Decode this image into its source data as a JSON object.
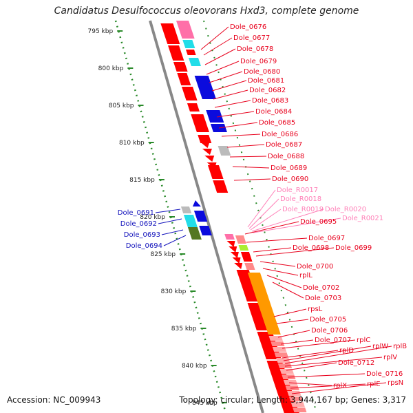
{
  "title": "Candidatus Desulfococcus oleovorans Hxd3, complete genome",
  "footer": {
    "accession": "Accession: NC_009943",
    "topology": "Topology: circular; Length: 3,944,167 bp; Genes: 3,317"
  },
  "scale": {
    "ticks": [
      "795 kbp",
      "800 kbp",
      "805 kbp",
      "810 kbp",
      "815 kbp",
      "820 kbp",
      "825 kbp",
      "830 kbp",
      "835 kbp",
      "840 kbp",
      "845 kbp"
    ]
  },
  "colors": {
    "cds": "#ff0000",
    "cds_light": "#ff8a8a",
    "rrna": "#ff6fa8",
    "hypo_cyan": "#22dde8",
    "hypo_blue": "#0b0bdd",
    "olive": "#557722",
    "orange": "#ff9900",
    "grey": "#bbbbbb",
    "backbone": "#888888",
    "scale_green": "#2a8a2a",
    "label_red": "#e8001c",
    "label_pink": "#ff80b8",
    "label_blue": "#1010bb"
  },
  "labels_right": [
    {
      "text": "Dole_0676",
      "tone": "red"
    },
    {
      "text": "Dole_0677",
      "tone": "red"
    },
    {
      "text": "Dole_0678",
      "tone": "red"
    },
    {
      "text": "Dole_0679",
      "tone": "red"
    },
    {
      "text": "Dole_0680",
      "tone": "red"
    },
    {
      "text": "Dole_0681",
      "tone": "red"
    },
    {
      "text": "Dole_0682",
      "tone": "red"
    },
    {
      "text": "Dole_0683",
      "tone": "red"
    },
    {
      "text": "Dole_0684",
      "tone": "red"
    },
    {
      "text": "Dole_0685",
      "tone": "red"
    },
    {
      "text": "Dole_0686",
      "tone": "red"
    },
    {
      "text": "Dole_0687",
      "tone": "red"
    },
    {
      "text": "Dole_0688",
      "tone": "red"
    },
    {
      "text": "Dole_0689",
      "tone": "red"
    },
    {
      "text": "Dole_0690",
      "tone": "red"
    },
    {
      "text": "Dole_R0017",
      "tone": "pink"
    },
    {
      "text": "Dole_R0018",
      "tone": "pink"
    },
    {
      "text": "Dole_R0019",
      "tone": "pink"
    },
    {
      "text": "Dole_R0020",
      "tone": "pink"
    },
    {
      "text": "Dole_R0021",
      "tone": "pink"
    },
    {
      "text": "Dole_0695",
      "tone": "red"
    },
    {
      "text": "Dole_0697",
      "tone": "red"
    },
    {
      "text": "Dole_0698",
      "tone": "red"
    },
    {
      "text": "Dole_0699",
      "tone": "red"
    },
    {
      "text": "Dole_0700",
      "tone": "red"
    },
    {
      "text": "rplL",
      "tone": "red"
    },
    {
      "text": "Dole_0702",
      "tone": "red"
    },
    {
      "text": "Dole_0703",
      "tone": "red"
    },
    {
      "text": "rpsL",
      "tone": "red"
    },
    {
      "text": "Dole_0705",
      "tone": "red"
    },
    {
      "text": "Dole_0706",
      "tone": "red"
    },
    {
      "text": "Dole_0707",
      "tone": "red"
    },
    {
      "text": "rplC",
      "tone": "red"
    },
    {
      "text": "rplD",
      "tone": "red"
    },
    {
      "text": "rplW",
      "tone": "red"
    },
    {
      "text": "rplB",
      "tone": "red"
    },
    {
      "text": "rplV",
      "tone": "red"
    },
    {
      "text": "Dole_0712",
      "tone": "red"
    },
    {
      "text": "Dole_0716",
      "tone": "red"
    },
    {
      "text": "rplX",
      "tone": "red"
    },
    {
      "text": "rplE",
      "tone": "red"
    },
    {
      "text": "rpsN",
      "tone": "red"
    }
  ],
  "labels_left": [
    {
      "text": "Dole_0691",
      "tone": "blue"
    },
    {
      "text": "Dole_0692",
      "tone": "blue"
    },
    {
      "text": "Dole_0693",
      "tone": "blue"
    },
    {
      "text": "Dole_0694",
      "tone": "blue"
    }
  ]
}
